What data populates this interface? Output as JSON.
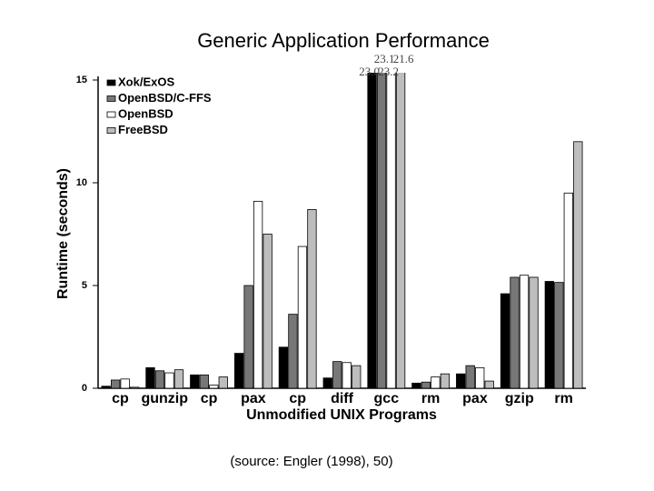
{
  "chart_data": {
    "type": "bar",
    "title": "Generic Application Performance",
    "x_label": "Unmodified UNIX Programs",
    "y_label": "Runtime (seconds)",
    "caption": "(source: Engler (1998), 50)",
    "categories": [
      "cp",
      "gunzip",
      "cp",
      "pax",
      "cp",
      "diff",
      "gcc",
      "rm",
      "pax",
      "gzip",
      "rm"
    ],
    "series": [
      {
        "name": "Xok/ExOS",
        "color": "#000000",
        "values": [
          0.1,
          1.0,
          0.65,
          1.7,
          2.0,
          0.5,
          23.0,
          0.25,
          0.7,
          4.6,
          5.2
        ],
        "value_labels": [
          null,
          null,
          null,
          null,
          null,
          null,
          "23.0",
          null,
          null,
          null,
          null
        ]
      },
      {
        "name": "OpenBSD/C-FFS",
        "color": "#777777",
        "values": [
          0.4,
          0.85,
          0.65,
          5.0,
          3.6,
          1.3,
          23.1,
          0.3,
          1.1,
          5.4,
          5.15
        ],
        "value_labels": [
          null,
          null,
          null,
          null,
          null,
          null,
          "23.1",
          null,
          null,
          null,
          null
        ]
      },
      {
        "name": "OpenBSD",
        "color": "#ffffff",
        "values": [
          0.45,
          0.75,
          0.15,
          9.1,
          6.9,
          1.25,
          23.2,
          0.55,
          1.0,
          5.5,
          9.5
        ],
        "value_labels": [
          null,
          null,
          null,
          null,
          null,
          null,
          "23.2",
          null,
          null,
          null,
          null
        ]
      },
      {
        "name": "FreeBSD",
        "color": "#bdbdbd",
        "values": [
          0.05,
          0.9,
          0.55,
          7.5,
          8.7,
          1.1,
          21.6,
          0.7,
          0.35,
          5.4,
          12.0
        ],
        "value_labels": [
          null,
          null,
          null,
          null,
          null,
          null,
          "21.6",
          null,
          null,
          null,
          null
        ]
      }
    ],
    "ylim": [
      0,
      15
    ],
    "yticks": [
      0,
      5,
      10,
      15
    ],
    "grid": false,
    "legend": "upper-left"
  }
}
